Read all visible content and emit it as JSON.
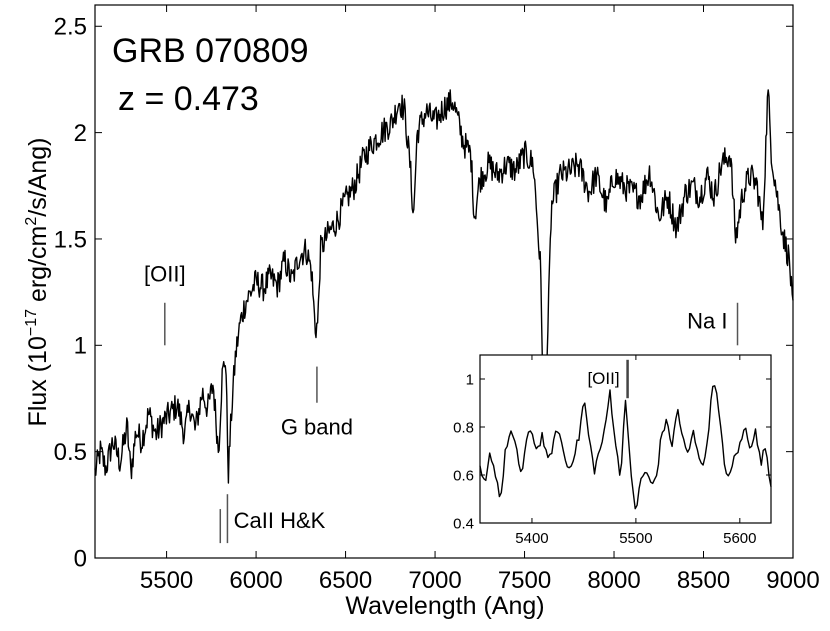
{
  "chart_data": [
    {
      "id": "main",
      "type": "line",
      "title": "GRB 070809",
      "subtitle": "z = 0.473",
      "xlabel": "Wavelength  (Ang)",
      "ylabel_parts": {
        "prefix": "Flux  (10",
        "exp1": "−17",
        "mid": " erg/cm",
        "exp2": "2",
        "suffix": "/s/Ang)"
      },
      "xlim": [
        5100,
        9000
      ],
      "ylim": [
        0,
        2.6
      ],
      "xticks": [
        5500,
        6000,
        6500,
        7000,
        7500,
        8000,
        8500,
        9000
      ],
      "xtick_labels": [
        "5500",
        "6000",
        "6500",
        "7000",
        "7500",
        "8000",
        "8500",
        "9000"
      ],
      "yticks": [
        0,
        0.5,
        1,
        1.5,
        2,
        2.5
      ],
      "ytick_labels": [
        "0",
        "0.5",
        "1",
        "1.5",
        "2",
        "2.5"
      ],
      "grid": false,
      "series": [
        {
          "color": "#000000",
          "anchors": [
            [
              5100,
              0.4
            ],
            [
              5130,
              0.5
            ],
            [
              5160,
              0.42
            ],
            [
              5200,
              0.55
            ],
            [
              5240,
              0.45
            ],
            [
              5280,
              0.62
            ],
            [
              5300,
              0.4
            ],
            [
              5330,
              0.6
            ],
            [
              5360,
              0.55
            ],
            [
              5400,
              0.68
            ],
            [
              5440,
              0.58
            ],
            [
              5480,
              0.64
            ],
            [
              5520,
              0.68
            ],
            [
              5560,
              0.72
            ],
            [
              5600,
              0.58
            ],
            [
              5630,
              0.72
            ],
            [
              5660,
              0.6
            ],
            [
              5700,
              0.78
            ],
            [
              5730,
              0.7
            ],
            [
              5760,
              0.82
            ],
            [
              5790,
              0.5
            ],
            [
              5810,
              0.85
            ],
            [
              5830,
              0.95
            ],
            [
              5845,
              0.4
            ],
            [
              5865,
              0.72
            ],
            [
              5885,
              0.95
            ],
            [
              5910,
              1.1
            ],
            [
              5940,
              1.2
            ],
            [
              5970,
              1.25
            ],
            [
              6000,
              1.3
            ],
            [
              6040,
              1.27
            ],
            [
              6080,
              1.32
            ],
            [
              6120,
              1.28
            ],
            [
              6160,
              1.4
            ],
            [
              6200,
              1.3
            ],
            [
              6240,
              1.42
            ],
            [
              6280,
              1.45
            ],
            [
              6310,
              1.35
            ],
            [
              6330,
              1.08
            ],
            [
              6345,
              1.1
            ],
            [
              6360,
              1.45
            ],
            [
              6400,
              1.52
            ],
            [
              6450,
              1.58
            ],
            [
              6500,
              1.68
            ],
            [
              6550,
              1.75
            ],
            [
              6600,
              1.88
            ],
            [
              6650,
              1.95
            ],
            [
              6700,
              2.0
            ],
            [
              6760,
              2.05
            ],
            [
              6800,
              2.15
            ],
            [
              6830,
              2.1
            ],
            [
              6860,
              1.85
            ],
            [
              6880,
              1.6
            ],
            [
              6900,
              2.0
            ],
            [
              6950,
              2.1
            ],
            [
              7000,
              2.05
            ],
            [
              7050,
              2.12
            ],
            [
              7100,
              2.15
            ],
            [
              7130,
              2.05
            ],
            [
              7160,
              1.95
            ],
            [
              7200,
              1.9
            ],
            [
              7220,
              1.6
            ],
            [
              7250,
              1.78
            ],
            [
              7300,
              1.85
            ],
            [
              7350,
              1.8
            ],
            [
              7400,
              1.85
            ],
            [
              7450,
              1.82
            ],
            [
              7500,
              1.9
            ],
            [
              7550,
              1.85
            ],
            [
              7590,
              1.35
            ],
            [
              7600,
              0.95
            ],
            [
              7615,
              0.72
            ],
            [
              7630,
              1.05
            ],
            [
              7650,
              1.65
            ],
            [
              7700,
              1.8
            ],
            [
              7760,
              1.82
            ],
            [
              7800,
              1.85
            ],
            [
              7860,
              1.72
            ],
            [
              7900,
              1.8
            ],
            [
              7960,
              1.65
            ],
            [
              8000,
              1.8
            ],
            [
              8050,
              1.75
            ],
            [
              8100,
              1.72
            ],
            [
              8150,
              1.7
            ],
            [
              8200,
              1.82
            ],
            [
              8250,
              1.6
            ],
            [
              8300,
              1.7
            ],
            [
              8350,
              1.55
            ],
            [
              8400,
              1.72
            ],
            [
              8440,
              1.75
            ],
            [
              8480,
              1.7
            ],
            [
              8520,
              1.8
            ],
            [
              8560,
              1.7
            ],
            [
              8600,
              1.85
            ],
            [
              8650,
              1.9
            ],
            [
              8680,
              1.5
            ],
            [
              8720,
              1.72
            ],
            [
              8760,
              1.8
            ],
            [
              8800,
              1.75
            ],
            [
              8830,
              1.55
            ],
            [
              8860,
              2.2
            ],
            [
              8880,
              1.9
            ],
            [
              8920,
              1.65
            ],
            [
              8950,
              1.5
            ],
            [
              8980,
              1.4
            ],
            [
              9000,
              1.15
            ]
          ]
        }
      ],
      "annotations": [
        {
          "text": "[OII]",
          "x": 5490,
          "y_label": 1.3,
          "line": [
            1.0,
            1.2
          ]
        },
        {
          "text": "CaII H&K",
          "x": 5830,
          "y_label": 0.14,
          "lines": [
            [
              5800,
              0.07,
              0.23
            ],
            [
              5840,
              0.07,
              0.3
            ]
          ]
        },
        {
          "text": "G band",
          "x": 6340,
          "y_label": 0.58,
          "line": [
            0.73,
            0.9
          ]
        },
        {
          "text": "Na I",
          "x": 8690,
          "y_label": 1.08,
          "line": [
            1.0,
            1.2
          ]
        }
      ]
    },
    {
      "id": "inset",
      "type": "line",
      "xlim": [
        5350,
        5630
      ],
      "ylim": [
        0.4,
        1.1
      ],
      "xticks": [
        5400,
        5500,
        5600
      ],
      "xtick_labels": [
        "5400",
        "5500",
        "5600"
      ],
      "yticks": [
        0.4,
        0.6,
        0.8,
        1.0
      ],
      "ytick_labels": [
        "0.4",
        "0.6",
        "0.8",
        "1"
      ],
      "series": [
        {
          "color": "#000000",
          "anchors": [
            [
              5350,
              0.62
            ],
            [
              5355,
              0.55
            ],
            [
              5360,
              0.7
            ],
            [
              5365,
              0.6
            ],
            [
              5370,
              0.5
            ],
            [
              5375,
              0.72
            ],
            [
              5380,
              0.78
            ],
            [
              5385,
              0.7
            ],
            [
              5390,
              0.6
            ],
            [
              5395,
              0.75
            ],
            [
              5400,
              0.78
            ],
            [
              5405,
              0.7
            ],
            [
              5410,
              0.77
            ],
            [
              5415,
              0.65
            ],
            [
              5420,
              0.72
            ],
            [
              5425,
              0.8
            ],
            [
              5430,
              0.7
            ],
            [
              5435,
              0.62
            ],
            [
              5440,
              0.68
            ],
            [
              5445,
              0.75
            ],
            [
              5450,
              0.92
            ],
            [
              5455,
              0.75
            ],
            [
              5460,
              0.62
            ],
            [
              5465,
              0.7
            ],
            [
              5470,
              0.78
            ],
            [
              5475,
              0.95
            ],
            [
              5480,
              0.75
            ],
            [
              5485,
              0.58
            ],
            [
              5490,
              0.93
            ],
            [
              5495,
              0.6
            ],
            [
              5500,
              0.45
            ],
            [
              5505,
              0.58
            ],
            [
              5510,
              0.62
            ],
            [
              5515,
              0.55
            ],
            [
              5520,
              0.6
            ],
            [
              5525,
              0.78
            ],
            [
              5530,
              0.82
            ],
            [
              5535,
              0.72
            ],
            [
              5540,
              0.88
            ],
            [
              5545,
              0.75
            ],
            [
              5550,
              0.68
            ],
            [
              5555,
              0.78
            ],
            [
              5560,
              0.7
            ],
            [
              5565,
              0.62
            ],
            [
              5570,
              0.8
            ],
            [
              5575,
              1.02
            ],
            [
              5580,
              0.85
            ],
            [
              5585,
              0.65
            ],
            [
              5590,
              0.58
            ],
            [
              5595,
              0.68
            ],
            [
              5600,
              0.72
            ],
            [
              5605,
              0.8
            ],
            [
              5610,
              0.72
            ],
            [
              5615,
              0.78
            ],
            [
              5620,
              0.65
            ],
            [
              5625,
              0.72
            ],
            [
              5630,
              0.55
            ]
          ]
        }
      ],
      "annotations": [
        {
          "text": "[OII]",
          "x": 5492,
          "y_label": 0.98,
          "line": [
            0.92,
            1.08
          ]
        }
      ]
    }
  ]
}
